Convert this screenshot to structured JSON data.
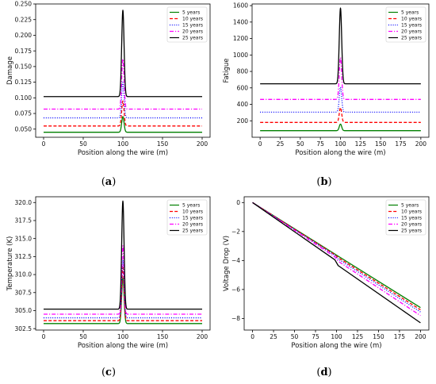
{
  "chart_data": [
    {
      "type": "line",
      "caption": "(a)",
      "xlabel": "Position along the wire (m)",
      "ylabel": "Damage",
      "xlim": [
        -10,
        210
      ],
      "ylim": [
        0.037,
        0.25
      ],
      "xticks": [
        0,
        50,
        100,
        150,
        200
      ],
      "yticks": [
        0.05,
        0.075,
        0.1,
        0.125,
        0.15,
        0.175,
        0.2,
        0.225,
        0.25
      ],
      "ytick_labels": [
        "0.050",
        "0.075",
        "0.100",
        "0.125",
        "0.150",
        "0.175",
        "0.200",
        "0.225",
        "0.250"
      ],
      "grid": false,
      "legend": "top-right",
      "peak_x": 100,
      "series": [
        {
          "name": "5 years",
          "baseline": 0.045,
          "peak": 0.07,
          "color": "#008000",
          "dash": "solid"
        },
        {
          "name": "10 years",
          "baseline": 0.055,
          "peak": 0.095,
          "color": "#ff0000",
          "dash": "dashed"
        },
        {
          "name": "15 years",
          "baseline": 0.068,
          "peak": 0.125,
          "color": "#0000ff",
          "dash": "dotted"
        },
        {
          "name": "20 years",
          "baseline": 0.082,
          "peak": 0.162,
          "color": "#ff00ff",
          "dash": "dashdot"
        },
        {
          "name": "25 years",
          "baseline": 0.102,
          "peak": 0.24,
          "color": "#000000",
          "dash": "solid"
        }
      ]
    },
    {
      "type": "line",
      "caption": "(b)",
      "xlabel": "Position along the wire (m)",
      "ylabel": "Fatigue",
      "xlim": [
        -10,
        210
      ],
      "ylim": [
        0,
        1620
      ],
      "xticks": [
        0,
        25,
        50,
        75,
        100,
        125,
        150,
        175,
        200
      ],
      "yticks": [
        200,
        400,
        600,
        800,
        1000,
        1200,
        1400,
        1600
      ],
      "ytick_labels": [
        "200",
        "400",
        "600",
        "800",
        "1000",
        "1200",
        "1400",
        "1600"
      ],
      "grid": false,
      "legend": "top-right",
      "peak_x": 100,
      "series": [
        {
          "name": "5 years",
          "baseline": 80,
          "peak": 160,
          "color": "#008000",
          "dash": "solid"
        },
        {
          "name": "10 years",
          "baseline": 180,
          "peak": 360,
          "color": "#ff0000",
          "dash": "dashed"
        },
        {
          "name": "15 years",
          "baseline": 305,
          "peak": 610,
          "color": "#0000ff",
          "dash": "dotted"
        },
        {
          "name": "20 years",
          "baseline": 460,
          "peak": 970,
          "color": "#ff00ff",
          "dash": "dashdot"
        },
        {
          "name": "25 years",
          "baseline": 650,
          "peak": 1570,
          "color": "#000000",
          "dash": "solid"
        }
      ]
    },
    {
      "type": "line",
      "caption": "(c)",
      "xlabel": "Position along the wire (m)",
      "ylabel": "Temperature (K)",
      "xlim": [
        -10,
        210
      ],
      "ylim": [
        302.3,
        320.8
      ],
      "xticks": [
        0,
        50,
        100,
        150,
        200
      ],
      "yticks": [
        302.5,
        305,
        307.5,
        310,
        312.5,
        315,
        317.5,
        320
      ],
      "ytick_labels": [
        "302.5",
        "305.0",
        "307.5",
        "310.0",
        "312.5",
        "315.0",
        "317.5",
        "320.0"
      ],
      "grid": false,
      "legend": "top-right",
      "peak_x": 100,
      "series": [
        {
          "name": "5 years",
          "baseline": 303.2,
          "peak": 309.5,
          "color": "#008000",
          "dash": "solid"
        },
        {
          "name": "10 years",
          "baseline": 303.6,
          "peak": 311.0,
          "color": "#ff0000",
          "dash": "dashed"
        },
        {
          "name": "15 years",
          "baseline": 304.0,
          "peak": 312.0,
          "color": "#0000ff",
          "dash": "dotted"
        },
        {
          "name": "20 years",
          "baseline": 304.5,
          "peak": 314.0,
          "color": "#ff00ff",
          "dash": "dashdot"
        },
        {
          "name": "25 years",
          "baseline": 305.2,
          "peak": 320.2,
          "color": "#000000",
          "dash": "solid"
        }
      ]
    },
    {
      "type": "line",
      "caption": "(d)",
      "xlabel": "Position along the wire (m)",
      "ylabel": "Voltage Drop (V)",
      "xlim": [
        -10,
        210
      ],
      "ylim": [
        -8.8,
        0.4
      ],
      "xticks": [
        0,
        25,
        50,
        75,
        100,
        125,
        150,
        175,
        200
      ],
      "yticks": [
        -8,
        -6,
        -4,
        -2,
        0
      ],
      "ytick_labels": [
        "−8",
        "−6",
        "−4",
        "−2",
        "0"
      ],
      "grid": false,
      "legend": "top-right",
      "series": [
        {
          "name": "5 years",
          "x": [
            0,
            98,
            102,
            200
          ],
          "y": [
            0,
            -3.55,
            -3.7,
            -7.25
          ],
          "color": "#008000",
          "dash": "solid"
        },
        {
          "name": "10 years",
          "x": [
            0,
            98,
            102,
            200
          ],
          "y": [
            0,
            -3.6,
            -3.8,
            -7.4
          ],
          "color": "#ff0000",
          "dash": "dashed"
        },
        {
          "name": "15 years",
          "x": [
            0,
            98,
            102,
            200
          ],
          "y": [
            0,
            -3.65,
            -3.9,
            -7.55
          ],
          "color": "#0000ff",
          "dash": "dotted"
        },
        {
          "name": "20 years",
          "x": [
            0,
            98,
            102,
            200
          ],
          "y": [
            0,
            -3.75,
            -4.05,
            -7.8
          ],
          "color": "#ff00ff",
          "dash": "dashdot"
        },
        {
          "name": "25 years",
          "x": [
            0,
            98,
            102,
            200
          ],
          "y": [
            0,
            -3.95,
            -4.35,
            -8.3
          ],
          "color": "#000000",
          "dash": "solid"
        }
      ]
    }
  ]
}
